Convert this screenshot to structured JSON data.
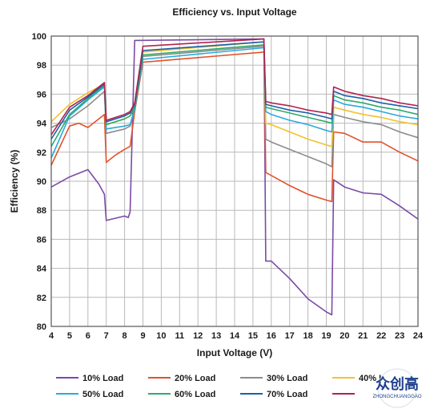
{
  "chart_data": {
    "type": "line",
    "title": "Efficiency vs. Input Voltage",
    "xlabel": "Input Voltage (V)",
    "ylabel": "Efficiency (%)",
    "xlim": [
      4,
      24
    ],
    "ylim": [
      80,
      100
    ],
    "xticks": [
      "4",
      "5",
      "6",
      "7",
      "8",
      "9",
      "10",
      "11",
      "12",
      "13",
      "14",
      "15",
      "16",
      "17",
      "18",
      "19",
      "20",
      "21",
      "22",
      "23",
      "24"
    ],
    "yticks": [
      "80",
      "82",
      "84",
      "86",
      "88",
      "90",
      "92",
      "94",
      "96",
      "98",
      "100"
    ],
    "grid": true,
    "legend_position": "bottom",
    "series": [
      {
        "name": "10% Load",
        "color": "#7b4aa6",
        "x": [
          4,
          5,
          6,
          6.6,
          6.9,
          7.0,
          8.0,
          8.2,
          8.3,
          8.55,
          15.6,
          15.7,
          16.0,
          17.0,
          18.0,
          19.0,
          19.3,
          19.4,
          20.0,
          21.0,
          22.0,
          23.0,
          24.0
        ],
        "y": [
          89.6,
          90.3,
          90.8,
          89.8,
          89.1,
          87.3,
          87.6,
          87.5,
          87.9,
          99.7,
          99.8,
          84.5,
          84.5,
          83.3,
          81.9,
          81.0,
          80.8,
          90.1,
          89.6,
          89.2,
          89.1,
          88.3,
          87.4
        ]
      },
      {
        "name": "20% Load",
        "color": "#e2522b",
        "x": [
          4,
          5,
          5.5,
          6,
          6.9,
          7.0,
          7.5,
          8.0,
          8.3,
          8.55,
          9.0,
          15.6,
          15.7,
          16.0,
          17.0,
          18.0,
          19.0,
          19.3,
          19.4,
          20.0,
          21.0,
          22.0,
          23.0,
          24.0
        ],
        "y": [
          91.1,
          93.8,
          94.0,
          93.7,
          94.6,
          91.3,
          91.8,
          92.2,
          92.4,
          94.8,
          98.2,
          98.9,
          90.6,
          90.4,
          89.7,
          89.1,
          88.7,
          88.6,
          93.4,
          93.3,
          92.7,
          92.7,
          92.0,
          91.4
        ]
      },
      {
        "name": "30% Load",
        "color": "#8c8c8c",
        "x": [
          4,
          5,
          6,
          6.9,
          7.0,
          8.0,
          8.3,
          8.55,
          9.0,
          15.6,
          15.7,
          16.0,
          17.0,
          18.0,
          19.0,
          19.3,
          19.4,
          20.0,
          21.0,
          22.0,
          23.0,
          24.0
        ],
        "y": [
          93.7,
          94.3,
          95.2,
          96.2,
          93.3,
          93.6,
          93.8,
          95.0,
          98.6,
          99.3,
          92.9,
          92.7,
          92.2,
          91.7,
          91.2,
          91.0,
          94.6,
          94.4,
          94.1,
          93.9,
          93.4,
          93.0
        ]
      },
      {
        "name": "40% Load",
        "color": "#f2c12e",
        "x": [
          4,
          5,
          6,
          6.9,
          7.0,
          8.0,
          8.3,
          8.55,
          9.0,
          15.6,
          15.7,
          16.0,
          17.0,
          18.0,
          19.0,
          19.3,
          19.4,
          20.0,
          21.0,
          22.0,
          23.0,
          24.0
        ],
        "y": [
          94.1,
          95.3,
          96.1,
          96.7,
          93.9,
          94.3,
          94.5,
          95.2,
          98.9,
          99.6,
          94.0,
          93.9,
          93.4,
          92.9,
          92.5,
          92.4,
          95.1,
          94.9,
          94.6,
          94.4,
          94.1,
          93.9
        ]
      },
      {
        "name": "50% Load",
        "color": "#2aa9dc",
        "x": [
          4,
          5,
          6,
          6.9,
          7.0,
          8.0,
          8.3,
          8.55,
          9.0,
          15.6,
          15.7,
          16.0,
          17.0,
          18.0,
          19.0,
          19.3,
          19.4,
          20.0,
          21.0,
          22.0,
          23.0,
          24.0
        ],
        "y": [
          91.6,
          94.5,
          95.6,
          96.5,
          93.6,
          93.8,
          93.9,
          95.0,
          98.4,
          99.2,
          94.8,
          94.6,
          94.2,
          93.9,
          93.5,
          93.4,
          95.6,
          95.3,
          95.1,
          94.8,
          94.5,
          94.3
        ]
      },
      {
        "name": "60% Load",
        "color": "#2eab6c",
        "x": [
          4,
          5,
          6,
          6.9,
          7.0,
          8.0,
          8.3,
          8.55,
          9.0,
          15.6,
          15.7,
          16.0,
          17.0,
          18.0,
          19.0,
          19.3,
          19.4,
          20.0,
          21.0,
          22.0,
          23.0,
          24.0
        ],
        "y": [
          92.4,
          94.6,
          95.7,
          96.6,
          93.9,
          94.3,
          94.5,
          95.1,
          98.7,
          99.4,
          95.1,
          95.0,
          94.7,
          94.4,
          94.1,
          94.0,
          95.9,
          95.6,
          95.4,
          95.1,
          94.9,
          94.6
        ]
      },
      {
        "name": "70% Load",
        "color": "#1f5fa8",
        "x": [
          4,
          5,
          6,
          6.9,
          7.0,
          8.0,
          8.3,
          8.55,
          9.0,
          15.6,
          15.7,
          16.0,
          17.0,
          18.0,
          19.0,
          19.3,
          19.4,
          20.0,
          21.0,
          22.0,
          23.0,
          24.0
        ],
        "y": [
          92.9,
          94.9,
          95.8,
          96.7,
          94.1,
          94.5,
          94.7,
          95.3,
          99.0,
          99.6,
          95.3,
          95.2,
          94.9,
          94.7,
          94.4,
          94.3,
          96.2,
          95.9,
          95.7,
          95.4,
          95.2,
          95.0
        ]
      },
      {
        "name": "",
        "color": "#b0234f",
        "x": [
          4,
          5,
          6,
          6.9,
          7.0,
          8.0,
          8.3,
          8.55,
          9.0,
          15.6,
          15.7,
          16.0,
          17.0,
          18.0,
          19.0,
          19.3,
          19.4,
          20.0,
          21.0,
          22.0,
          23.0,
          24.0
        ],
        "y": [
          93.2,
          95.1,
          95.9,
          96.8,
          94.2,
          94.6,
          94.8,
          95.4,
          99.3,
          99.8,
          95.5,
          95.4,
          95.2,
          94.9,
          94.7,
          94.6,
          96.5,
          96.2,
          95.9,
          95.7,
          95.4,
          95.2
        ]
      }
    ]
  },
  "watermark": {
    "main": "众创高",
    "sub": "ZHONGCHUANGGAO"
  }
}
